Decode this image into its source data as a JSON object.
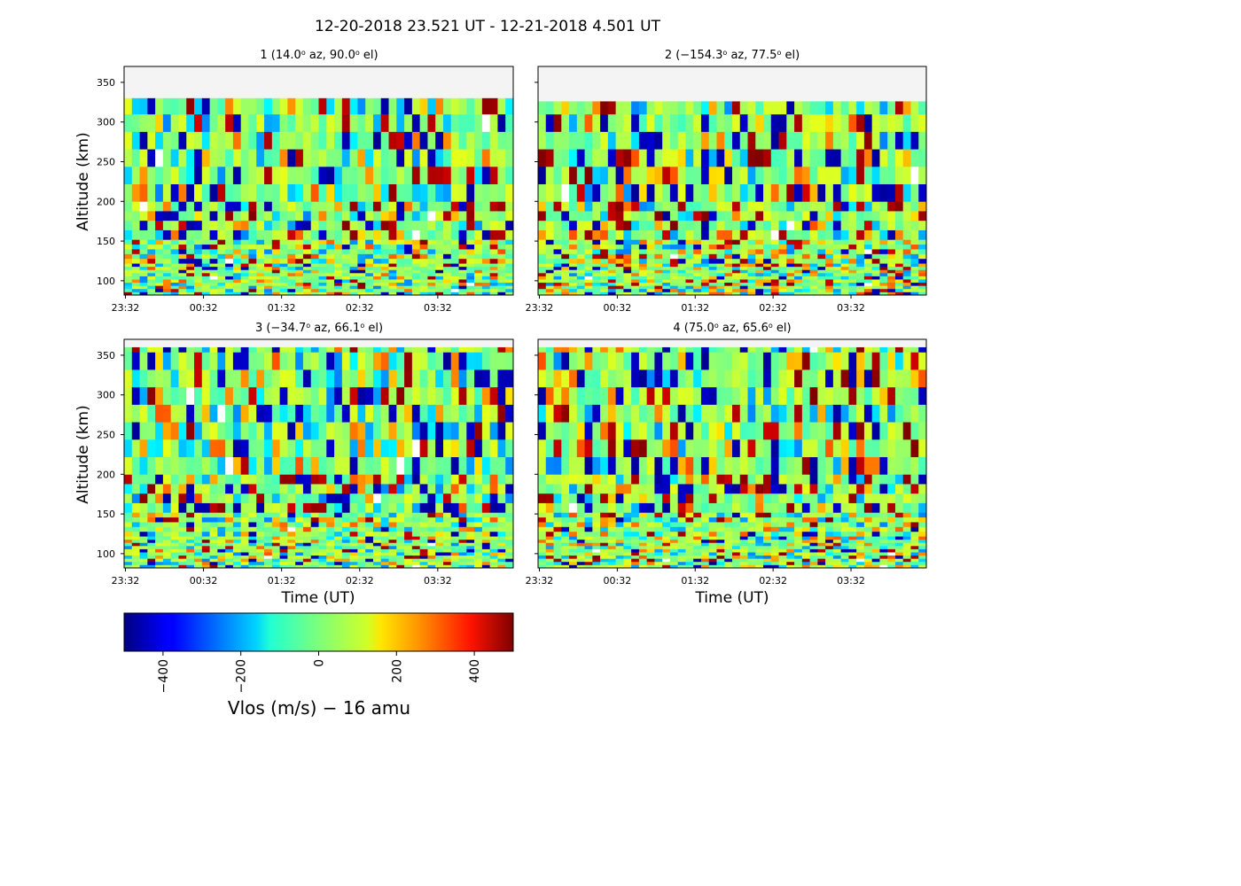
{
  "figure": {
    "title": "12-20-2018 23.521 UT - 12-21-2018 4.501 UT"
  },
  "chart_data": [
    {
      "type": "heatmap",
      "title": "1 (14.0⁰ az,  90.0⁰ el)",
      "title_main": "1 (14.0",
      "title_sup1": "o",
      "title_mid": " az,  90.0",
      "title_sup2": "o",
      "title_end": " el)",
      "ylabel": "Altitude (km)",
      "xlabel": "",
      "xticks": [
        "23:32",
        "00:32",
        "01:32",
        "02:32",
        "03:32"
      ],
      "yticks": [
        100,
        150,
        200,
        250,
        300,
        350
      ],
      "xlim": [
        "23:31",
        "04:30"
      ],
      "ylim": [
        82,
        370
      ],
      "data_top_km": 330,
      "color_scale": "jet",
      "vmin": -500,
      "vmax": 500
    },
    {
      "type": "heatmap",
      "title": "2 (−154.3⁰ az,  77.5⁰ el)",
      "title_main": "2 (−154.3",
      "title_sup1": "o",
      "title_mid": " az,  77.5",
      "title_sup2": "o",
      "title_end": " el)",
      "ylabel": "",
      "xlabel": "",
      "xticks": [
        "23:32",
        "00:32",
        "01:32",
        "02:32",
        "03:32"
      ],
      "yticks": [
        100,
        150,
        200,
        250,
        300,
        350
      ],
      "xlim": [
        "23:31",
        "04:30"
      ],
      "ylim": [
        82,
        370
      ],
      "data_top_km": 326,
      "color_scale": "jet",
      "vmin": -500,
      "vmax": 500
    },
    {
      "type": "heatmap",
      "title": "3 (−34.7⁰ az,  66.1⁰ el)",
      "title_main": "3 (−34.7",
      "title_sup1": "o",
      "title_mid": " az,  66.1",
      "title_sup2": "o",
      "title_end": " el)",
      "ylabel": "Altitude (km)",
      "xlabel": "Time (UT)",
      "xticks": [
        "23:32",
        "00:32",
        "01:32",
        "02:32",
        "03:32"
      ],
      "yticks": [
        100,
        150,
        200,
        250,
        300,
        350
      ],
      "xlim": [
        "23:31",
        "04:30"
      ],
      "ylim": [
        82,
        370
      ],
      "data_top_km": 360,
      "color_scale": "jet",
      "vmin": -500,
      "vmax": 500
    },
    {
      "type": "heatmap",
      "title": "4 (75.0⁰ az,  65.6⁰ el)",
      "title_main": "4 (75.0",
      "title_sup1": "o",
      "title_mid": " az,  65.6",
      "title_sup2": "o",
      "title_end": " el)",
      "ylabel": "",
      "xlabel": "Time (UT)",
      "xticks": [
        "23:32",
        "00:32",
        "01:32",
        "02:32",
        "03:32"
      ],
      "yticks": [
        100,
        150,
        200,
        250,
        300,
        350
      ],
      "xlim": [
        "23:31",
        "04:30"
      ],
      "ylim": [
        82,
        370
      ],
      "data_top_km": 360,
      "color_scale": "jet",
      "vmin": -500,
      "vmax": 500
    }
  ],
  "colorbar": {
    "label": "Vlos (m/s)  − 16 amu",
    "ticks": [
      "−400",
      "−200",
      "0",
      "200",
      "400"
    ],
    "tick_values": [
      -400,
      -200,
      0,
      200,
      400
    ],
    "vmin": -500,
    "vmax": 500,
    "colormap": "jet"
  },
  "colors": {
    "nodata": "#f4f4f4",
    "frame": "#000000",
    "background": "#ffffff"
  }
}
